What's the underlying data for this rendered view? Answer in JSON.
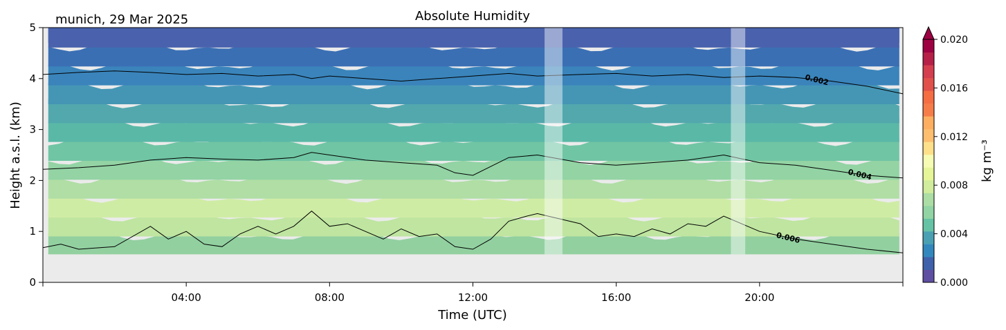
{
  "chart_data": {
    "type": "heatmap",
    "title": "Absolute Humidity",
    "location_date": "munich, 29 Mar 2025",
    "xlabel": "Time (UTC)",
    "ylabel": "Height a.s.l. (km)",
    "xlim_hours": [
      0,
      24
    ],
    "ylim_km": [
      0,
      5
    ],
    "x_ticks": [
      {
        "hour": 4,
        "label": "04:00"
      },
      {
        "hour": 8,
        "label": "08:00"
      },
      {
        "hour": 12,
        "label": "12:00"
      },
      {
        "hour": 16,
        "label": "16:00"
      },
      {
        "hour": 20,
        "label": "20:00"
      }
    ],
    "y_ticks": [
      "0",
      "1",
      "2",
      "3",
      "4",
      "5"
    ],
    "colorbar": {
      "label": "kg m⁻³",
      "range": [
        0.0,
        0.02
      ],
      "extend": "max",
      "ticks": [
        "0.000",
        "0.004",
        "0.008",
        "0.012",
        "0.016",
        "0.020"
      ],
      "colormap": "Spectral_r",
      "colors": [
        "#5e4fa2",
        "#3f61ab",
        "#3288bd",
        "#4aa0b3",
        "#66c2a5",
        "#92d4a4",
        "#abdda4",
        "#d0ec9c",
        "#e6f598",
        "#f7fcb4",
        "#fee08b",
        "#fdbe6f",
        "#fdae61",
        "#f67d4a",
        "#f46d43",
        "#e1504b",
        "#d53e4f",
        "#b61f48",
        "#9e0142"
      ]
    },
    "no_data_below_km": 0.55,
    "missing_time_windows_hours": [
      [
        14.0,
        14.5
      ],
      [
        19.2,
        19.6
      ]
    ],
    "contours": [
      {
        "level": "0.002",
        "label": "0.002",
        "x_hours": [
          0,
          1,
          2,
          3,
          4,
          5,
          6,
          7,
          7.5,
          8,
          9,
          10,
          11,
          12,
          13,
          13.8,
          15,
          16,
          17,
          18,
          19,
          20,
          21,
          22,
          23,
          24
        ],
        "y_km": [
          4.08,
          4.12,
          4.15,
          4.12,
          4.08,
          4.1,
          4.05,
          4.08,
          4.0,
          4.05,
          4.0,
          3.95,
          4.0,
          4.05,
          4.1,
          4.05,
          4.08,
          4.1,
          4.05,
          4.08,
          4.02,
          4.05,
          4.02,
          3.95,
          3.85,
          3.7
        ]
      },
      {
        "level": "0.004",
        "label": "0.004",
        "x_hours": [
          0,
          1,
          2,
          3,
          4,
          5,
          6,
          7,
          7.5,
          8,
          9,
          10,
          11,
          11.5,
          12,
          13,
          13.8,
          15,
          16,
          17,
          18,
          19,
          20,
          21,
          22,
          23,
          24
        ],
        "y_km": [
          2.22,
          2.25,
          2.3,
          2.4,
          2.45,
          2.42,
          2.4,
          2.45,
          2.55,
          2.5,
          2.4,
          2.35,
          2.3,
          2.15,
          2.1,
          2.45,
          2.5,
          2.35,
          2.3,
          2.35,
          2.4,
          2.5,
          2.35,
          2.3,
          2.2,
          2.1,
          2.05
        ]
      },
      {
        "level": "0.006",
        "label": "0.006",
        "x_hours": [
          0,
          0.5,
          1,
          2,
          3,
          3.5,
          4,
          4.5,
          5,
          5.5,
          6,
          6.5,
          7,
          7.5,
          8,
          8.5,
          9,
          9.5,
          10,
          10.5,
          11,
          11.5,
          12,
          12.5,
          13,
          13.5,
          13.8,
          15,
          15.5,
          16,
          16.5,
          17,
          17.5,
          18,
          18.5,
          19,
          20,
          21,
          22,
          23,
          24
        ],
        "y_km": [
          0.68,
          0.75,
          0.65,
          0.7,
          1.1,
          0.85,
          1.0,
          0.75,
          0.7,
          0.95,
          1.1,
          0.95,
          1.1,
          1.4,
          1.1,
          1.15,
          1.0,
          0.85,
          1.05,
          0.9,
          0.95,
          0.7,
          0.65,
          0.85,
          1.2,
          1.3,
          1.35,
          1.15,
          0.9,
          0.95,
          0.9,
          1.05,
          0.95,
          1.15,
          1.1,
          1.3,
          1.0,
          0.85,
          0.75,
          0.65,
          0.58
        ]
      }
    ],
    "field_band_colors": [
      "#92d0a0",
      "#bfe5a0",
      "#cfeca5",
      "#b0dea5",
      "#93d3a4",
      "#70c5a4",
      "#5ab8a6",
      "#52a8ad",
      "#4596b5",
      "#3a84bb",
      "#3b6fb4",
      "#4a62ad"
    ]
  }
}
